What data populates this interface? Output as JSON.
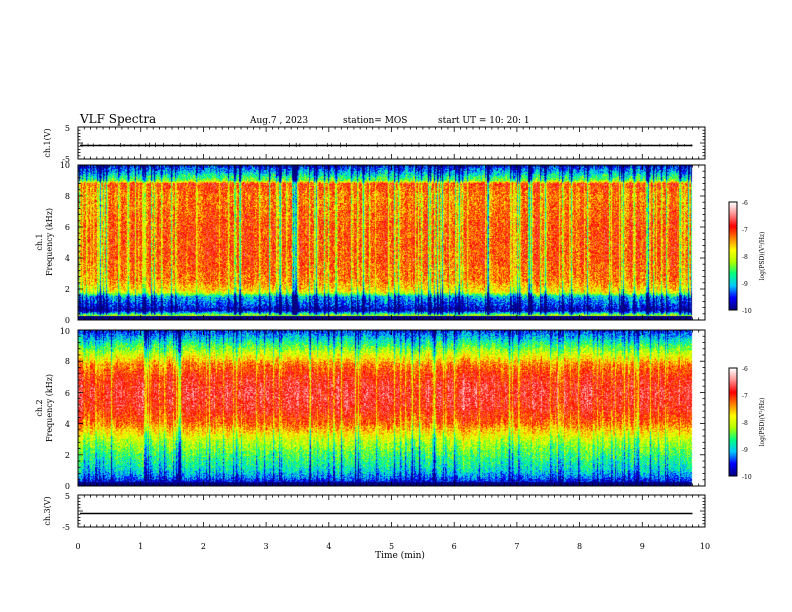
{
  "header": {
    "title": "VLF Spectra",
    "date": "Aug.7  , 2023",
    "station": "station= MOS",
    "start_ut": "start  UT  =   10: 20: 1"
  },
  "chart_data": [
    {
      "type": "line",
      "name": "ch1-waveform",
      "ylabel": "ch.1(V)",
      "ylim": [
        -5,
        5
      ],
      "yticks": [
        "5",
        "-5"
      ],
      "xlim": [
        0,
        10
      ],
      "trace_level_v": -0.8
    },
    {
      "type": "heatmap",
      "name": "ch1-spectrogram",
      "ylabel": "ch.1\nFrequency (kHz)",
      "ylabel_line1": "ch.1",
      "ylabel_line2": "Frequency (kHz)",
      "ylim": [
        0,
        10
      ],
      "yticks": [
        "0",
        "2",
        "4",
        "6",
        "8",
        "10"
      ],
      "xlim": [
        0,
        10
      ],
      "data_end_min": 9.8,
      "colorbar": {
        "label": "log(PSD)(V²/Hz)",
        "range": [
          -10,
          -6
        ],
        "ticks": [
          "-6",
          "-7",
          "-8",
          "-9",
          "-10"
        ],
        "colors": [
          "#000080",
          "#0000ff",
          "#00c8ff",
          "#00ff80",
          "#b0ff00",
          "#ffff00",
          "#ff8000",
          "#ff0000",
          "#ff9090",
          "#ffffff"
        ]
      },
      "profile": [
        {
          "f": 0.0,
          "v": -10.0
        },
        {
          "f": 0.3,
          "v": -8.0
        },
        {
          "f": 0.6,
          "v": -9.8
        },
        {
          "f": 1.0,
          "v": -9.4
        },
        {
          "f": 1.5,
          "v": -9.0
        },
        {
          "f": 1.8,
          "v": -7.8
        },
        {
          "f": 2.5,
          "v": -7.3
        },
        {
          "f": 4.0,
          "v": -7.1
        },
        {
          "f": 6.0,
          "v": -7.1
        },
        {
          "f": 8.0,
          "v": -7.3
        },
        {
          "f": 8.8,
          "v": -7.0
        },
        {
          "f": 9.0,
          "v": -8.3
        },
        {
          "f": 9.5,
          "v": -9.0
        },
        {
          "f": 10.0,
          "v": -9.6
        }
      ]
    },
    {
      "type": "heatmap",
      "name": "ch2-spectrogram",
      "ylabel": "ch.2\nFrequency (kHz)",
      "ylabel_line1": "ch.2",
      "ylabel_line2": "Frequency (kHz)",
      "ylim": [
        0,
        10
      ],
      "yticks": [
        "0",
        "2",
        "4",
        "6",
        "8",
        "10"
      ],
      "xlim": [
        0,
        10
      ],
      "data_end_min": 9.8,
      "colorbar": {
        "label": "log(PSD)(V²/Hz)",
        "range": [
          -10,
          -6
        ],
        "ticks": [
          "-6",
          "-7",
          "-8",
          "-9",
          "-10"
        ],
        "colors": [
          "#000080",
          "#0000ff",
          "#00c8ff",
          "#00ff80",
          "#b0ff00",
          "#ffff00",
          "#ff8000",
          "#ff0000",
          "#ff9090",
          "#ffffff"
        ]
      },
      "profile": [
        {
          "f": 0.0,
          "v": -10.0
        },
        {
          "f": 0.5,
          "v": -9.3
        },
        {
          "f": 1.0,
          "v": -8.9
        },
        {
          "f": 2.0,
          "v": -8.5
        },
        {
          "f": 3.0,
          "v": -8.0
        },
        {
          "f": 4.0,
          "v": -7.2
        },
        {
          "f": 5.0,
          "v": -6.8
        },
        {
          "f": 6.0,
          "v": -6.7
        },
        {
          "f": 7.0,
          "v": -6.9
        },
        {
          "f": 7.8,
          "v": -7.3
        },
        {
          "f": 8.5,
          "v": -8.0
        },
        {
          "f": 9.3,
          "v": -8.8
        },
        {
          "f": 10.0,
          "v": -9.5
        }
      ]
    },
    {
      "type": "line",
      "name": "ch3-waveform",
      "ylabel": "ch.3(V)",
      "ylim": [
        -5,
        5
      ],
      "yticks": [
        "5",
        "-5"
      ],
      "xlim": [
        0,
        10
      ],
      "trace_level_v": -0.8,
      "xlabel": "Time  (min)",
      "xticks": [
        "0",
        "1",
        "2",
        "3",
        "4",
        "5",
        "6",
        "7",
        "8",
        "9",
        "10"
      ]
    }
  ]
}
